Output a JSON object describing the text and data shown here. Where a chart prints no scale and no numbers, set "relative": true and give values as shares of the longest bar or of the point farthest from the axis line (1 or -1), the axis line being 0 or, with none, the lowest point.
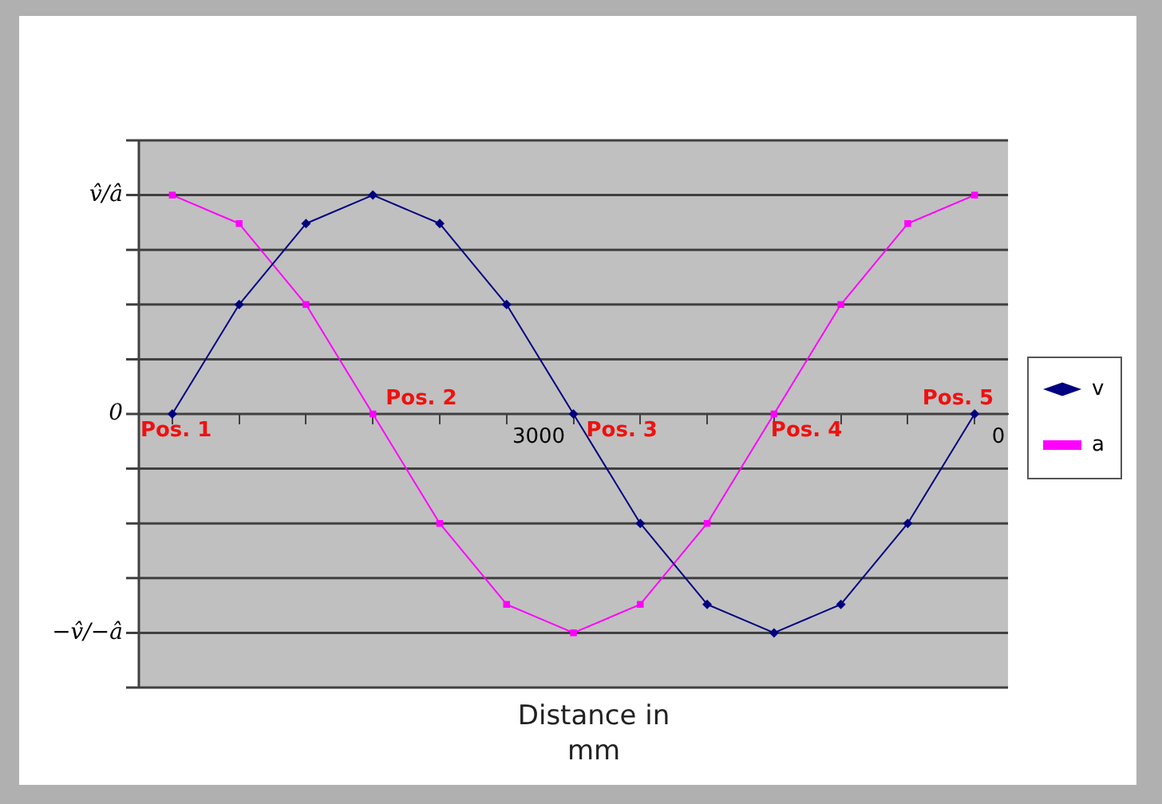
{
  "chart_data": {
    "type": "line",
    "xlabel": "Distance in mm",
    "categories": [
      null,
      null,
      null,
      null,
      null,
      null,
      null,
      null,
      null,
      null,
      null,
      null,
      null
    ],
    "series": [
      {
        "name": "v",
        "color": "#000080",
        "marker": "diamond",
        "values": [
          0,
          0.5,
          0.87,
          1,
          0.87,
          0.5,
          0,
          -0.5,
          -0.87,
          -1,
          -0.87,
          -0.5,
          0
        ]
      },
      {
        "name": "a",
        "color": "#ff00ff",
        "marker": "square",
        "values": [
          1,
          0.87,
          0.5,
          0,
          -0.5,
          -0.87,
          -1,
          -0.87,
          -0.5,
          0,
          0.5,
          0.87,
          1
        ]
      }
    ],
    "relative": true,
    "grid": "y",
    "legend": "right",
    "line_style": "solid",
    "annotations": [
      "v̂/â",
      "0",
      "−v̂/−â",
      "Pos. 1",
      "Pos. 2",
      "Pos. 3",
      "Pos. 4",
      "Pos. 5",
      "3000",
      "0"
    ]
  }
}
